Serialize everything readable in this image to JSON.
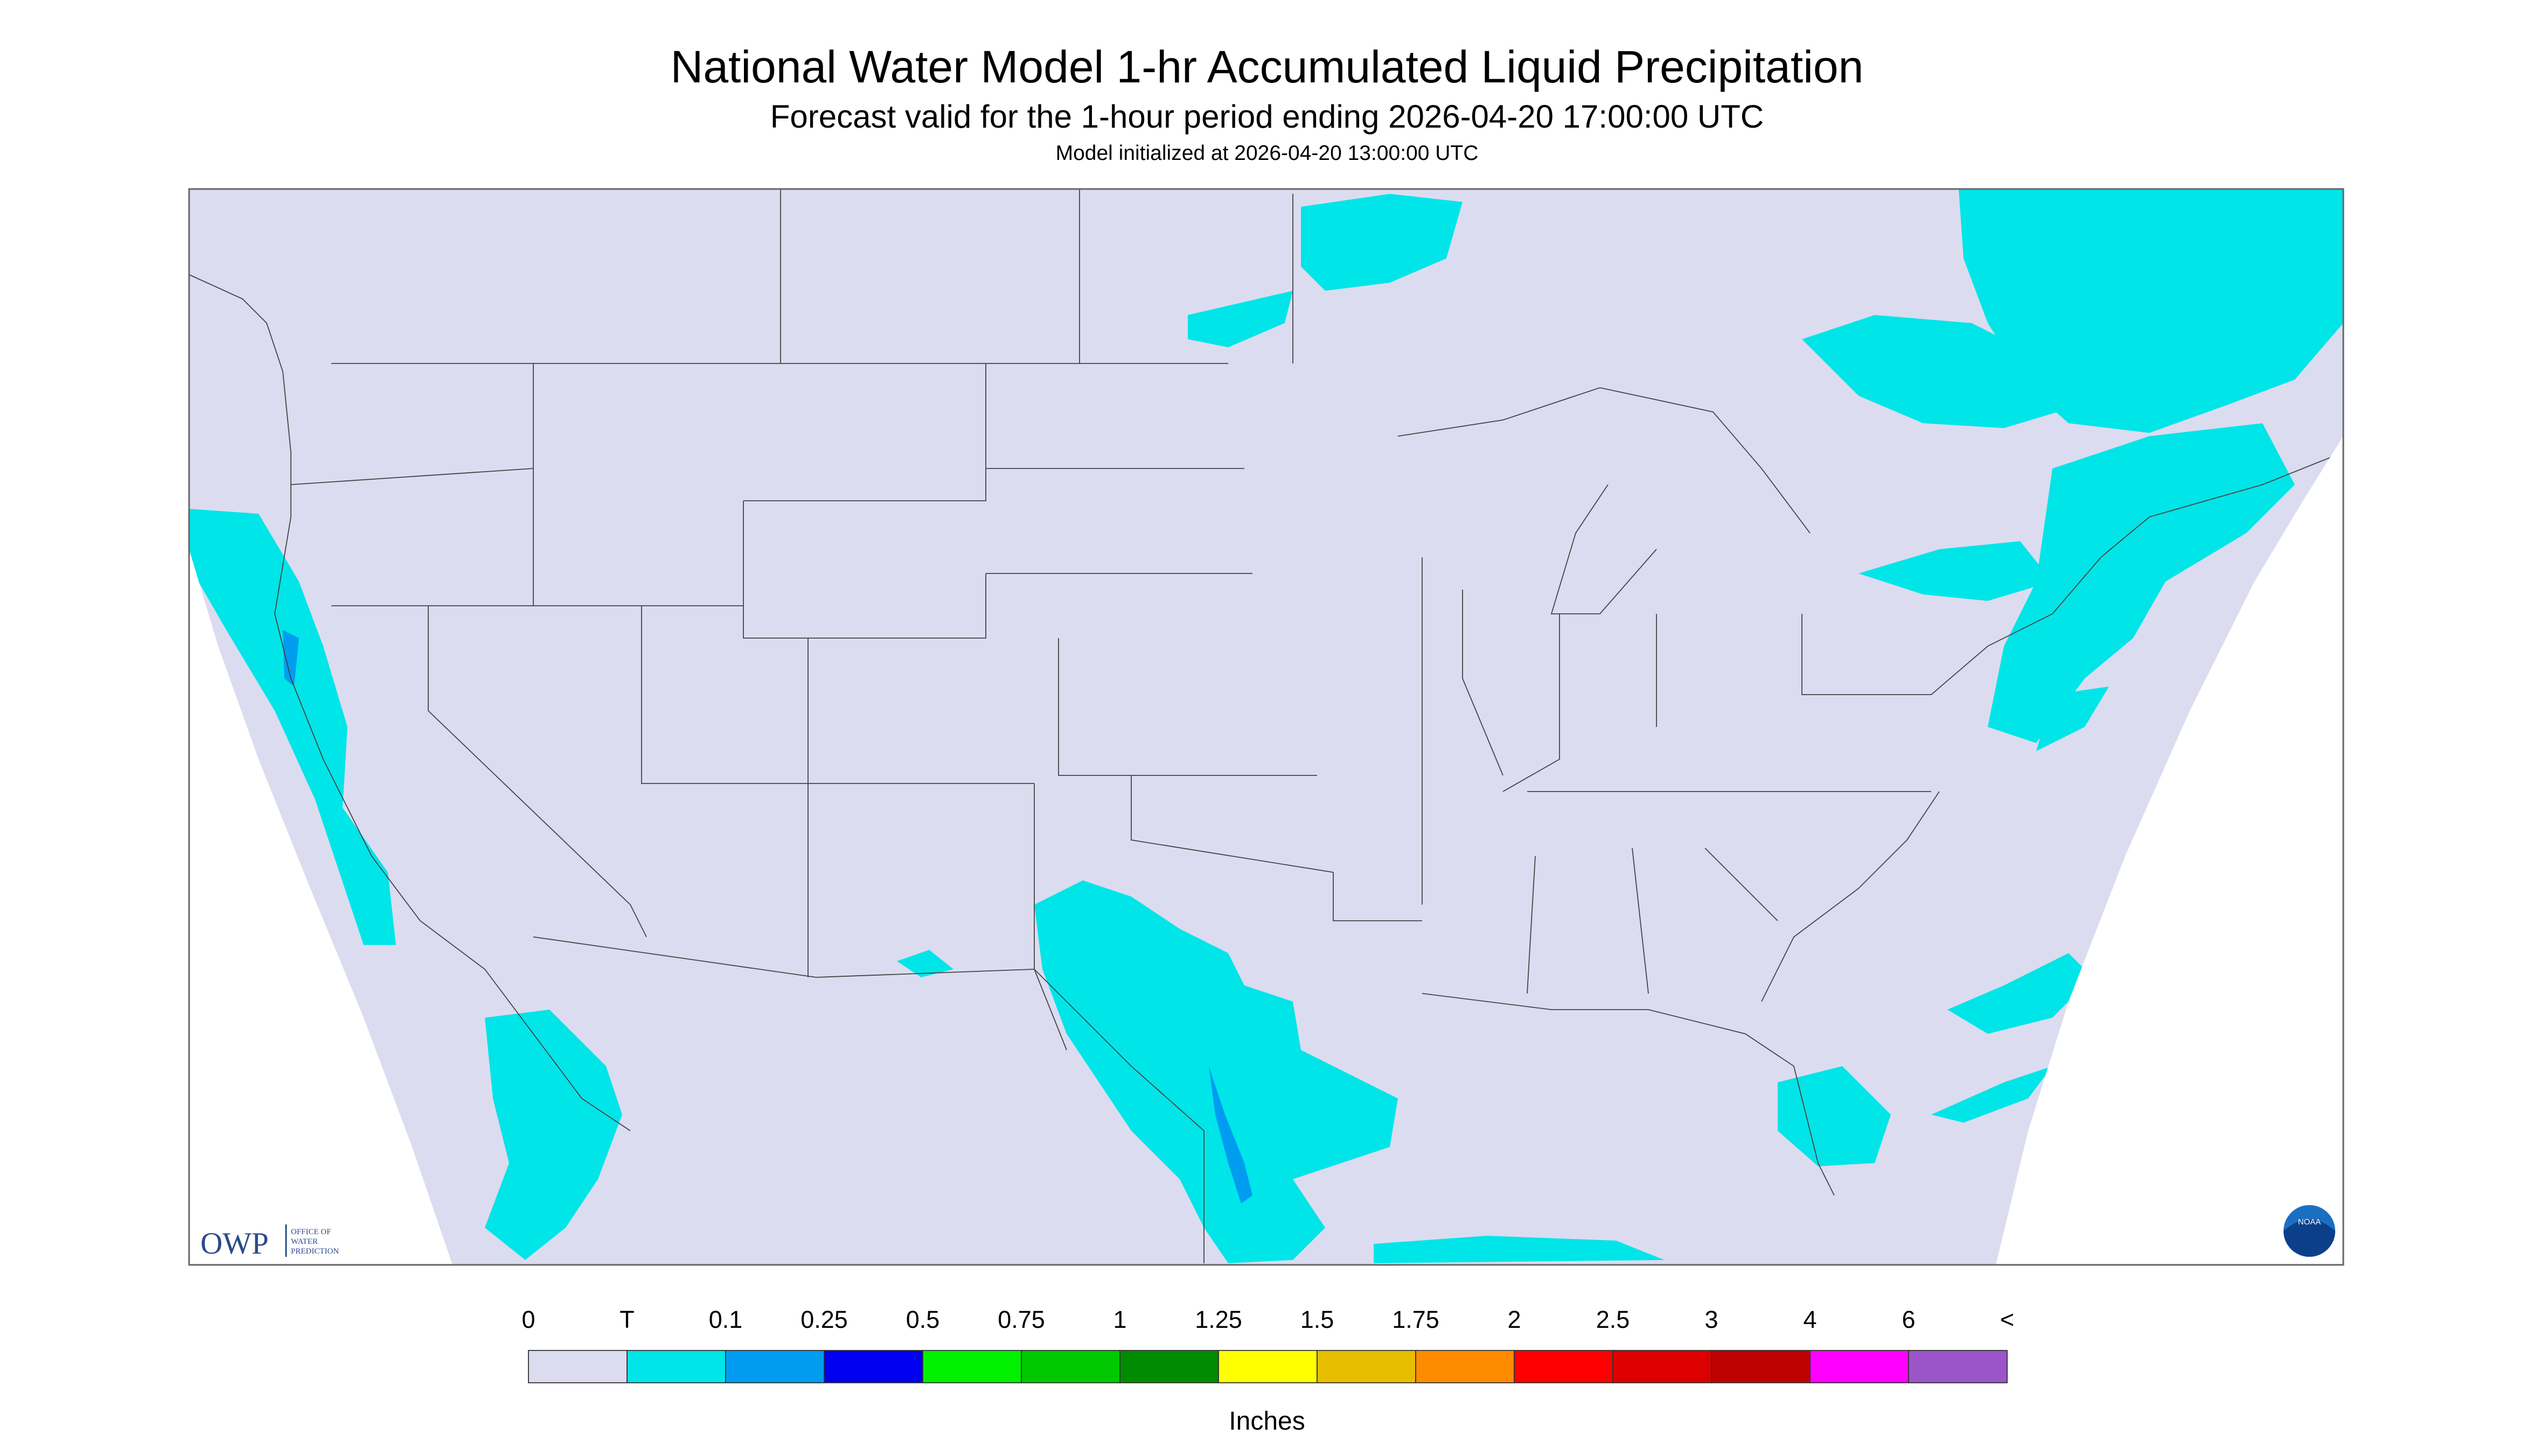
{
  "header": {
    "title": "National Water Model 1-hr Accumulated Liquid Precipitation",
    "subtitle": "Forecast valid for the 1-hour period ending 2026-04-20 17:00:00 UTC",
    "note": "Model initialized at 2026-04-20 13:00:00 UTC"
  },
  "legend": {
    "labels": [
      "0",
      "T",
      "0.1",
      "0.25",
      "0.5",
      "0.75",
      "1",
      "1.25",
      "1.5",
      "1.75",
      "2",
      "2.5",
      "3",
      "4",
      "6",
      "<"
    ],
    "colors": [
      "#dcdcf0",
      "#00e5e8",
      "#009cf0",
      "#0000f0",
      "#00f000",
      "#00c800",
      "#008c00",
      "#ffff00",
      "#e6be00",
      "#ff8c00",
      "#ff0000",
      "#dc0000",
      "#be0000",
      "#ff00ff",
      "#9b55c8"
    ],
    "unit": "Inches"
  },
  "logos": {
    "owp": "OWP",
    "owp_full": [
      "OFFICE OF",
      "WATER",
      "PREDICTION"
    ],
    "noaa": "NOAA"
  }
}
